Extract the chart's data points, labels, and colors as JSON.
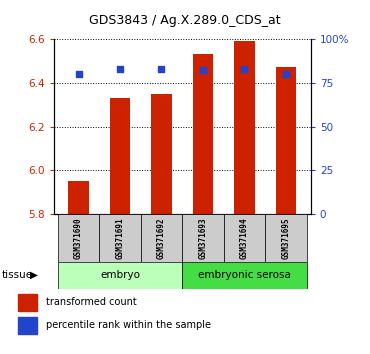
{
  "title": "GDS3843 / Ag.X.289.0_CDS_at",
  "samples": [
    "GSM371690",
    "GSM371691",
    "GSM371692",
    "GSM371693",
    "GSM371694",
    "GSM371695"
  ],
  "transformed_counts": [
    5.95,
    6.33,
    6.35,
    6.53,
    6.59,
    6.47
  ],
  "percentile_ranks": [
    80,
    83,
    83,
    82,
    83,
    80
  ],
  "groups": [
    {
      "label": "embryo",
      "samples": [
        0,
        1,
        2
      ],
      "color": "#bbffbb"
    },
    {
      "label": "embryonic serosa",
      "samples": [
        3,
        4,
        5
      ],
      "color": "#44dd44"
    }
  ],
  "ylim_left": [
    5.8,
    6.6
  ],
  "ylim_right": [
    0,
    100
  ],
  "yticks_left": [
    5.8,
    6.0,
    6.2,
    6.4,
    6.6
  ],
  "yticks_right": [
    0,
    25,
    50,
    75,
    100
  ],
  "ytick_right_labels": [
    "0",
    "25",
    "50",
    "75",
    "100%"
  ],
  "bar_color": "#cc2200",
  "dot_color": "#2244cc",
  "bar_width": 0.5,
  "tissue_label": "tissue",
  "legend_bar_label": "transformed count",
  "legend_dot_label": "percentile rank within the sample",
  "left_tick_color": "#cc2200",
  "right_tick_color": "#2244cc"
}
